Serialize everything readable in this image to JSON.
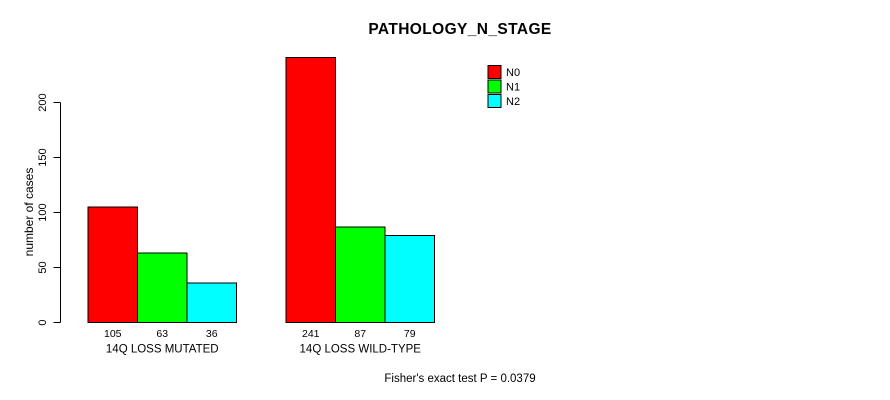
{
  "chart_data": {
    "type": "bar",
    "title": "PATHOLOGY_N_STAGE",
    "ylabel": "number of cases",
    "xlabel": "",
    "categories": [
      "14Q LOSS MUTATED",
      "14Q LOSS WILD-TYPE"
    ],
    "series": [
      {
        "name": "N0",
        "color": "#ff0000",
        "values": [
          105,
          241
        ]
      },
      {
        "name": "N1",
        "color": "#00ff00",
        "values": [
          63,
          87
        ]
      },
      {
        "name": "N2",
        "color": "#00ffff",
        "values": [
          36,
          79
        ]
      }
    ],
    "bar_value_labels": [
      [
        105,
        63,
        36
      ],
      [
        241,
        87,
        79
      ]
    ],
    "yticks": [
      0,
      50,
      100,
      150,
      200
    ],
    "ylim": [
      0,
      245
    ],
    "grid": false,
    "legend_position": "top-right",
    "annotation": "Fisher's exact test P = 0.0379"
  },
  "colors": {
    "bar_border": "#000000",
    "axis": "#000000",
    "background": "#ffffff"
  }
}
